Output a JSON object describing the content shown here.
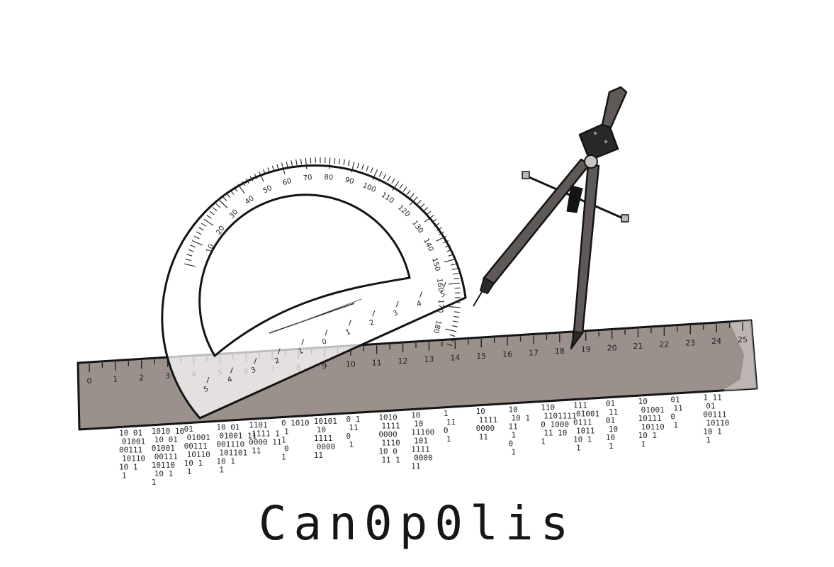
{
  "brand": {
    "name": "Can0p0lis"
  },
  "illustration": {
    "ruler": {
      "labels": [
        "0",
        "1",
        "2",
        "3",
        "4",
        "5",
        "6",
        "7",
        "8",
        "9",
        "10",
        "11",
        "12",
        "13",
        "14",
        "15",
        "16",
        "17",
        "18",
        "19",
        "20",
        "21",
        "22",
        "23",
        "24",
        "25"
      ]
    },
    "protractor": {
      "outer_labels": [
        "10",
        "20",
        "30",
        "40",
        "50",
        "60",
        "70",
        "80",
        "90",
        "100",
        "110",
        "120",
        "130",
        "140",
        "150",
        "160",
        "170",
        "180"
      ],
      "base_labels": [
        "5",
        "4",
        "3",
        "2",
        "1",
        "0",
        "1",
        "2",
        "3",
        "4",
        "5"
      ]
    },
    "compass": {
      "icon": "compass-icon"
    },
    "binary_columns": [
      [
        "10 01",
        "01001",
        "00111",
        "10110",
        "10 1",
        "1"
      ],
      [
        "1010 10",
        "10 01",
        "01001",
        "00111",
        "10110",
        "10 1",
        "1"
      ],
      [
        "01",
        "01001",
        "00111",
        "10110",
        "10 1",
        "1"
      ],
      [
        "10 01",
        "01001 11",
        "001110",
        "101101",
        "10 1",
        "1"
      ],
      [
        "1101",
        "1111 1",
        "0000 11",
        "11"
      ],
      [
        "0 1010",
        "1",
        "1",
        "0",
        "1"
      ],
      [
        "10101",
        "10",
        "1111",
        "0000",
        "11"
      ],
      [
        "0 1",
        "11",
        "0",
        "1"
      ],
      [
        "1010",
        "1111",
        "0000",
        "1110",
        "10 0",
        "11 1"
      ],
      [
        "10",
        "10",
        "11100",
        "101",
        "1111",
        "0000",
        "11"
      ],
      [
        "1",
        "11",
        "0",
        "1"
      ],
      [
        "10",
        "1111",
        "0000",
        "11"
      ],
      [
        "10",
        "10 1",
        "11",
        "1",
        "0",
        "1"
      ],
      [
        "110",
        "1101111",
        "0 1000",
        "11 10",
        "1"
      ],
      [
        "111",
        "01001",
        "0111",
        "1011",
        "10 1",
        "1"
      ],
      [
        "01",
        "11",
        "01",
        "10",
        "10",
        "1"
      ],
      [
        "10",
        "01001",
        "10111",
        "10110",
        "10 1",
        "1"
      ],
      [
        "01",
        "11",
        "0",
        "1"
      ],
      [
        "1 11",
        "01",
        "00111",
        "10110",
        "10 1",
        "1"
      ]
    ]
  }
}
